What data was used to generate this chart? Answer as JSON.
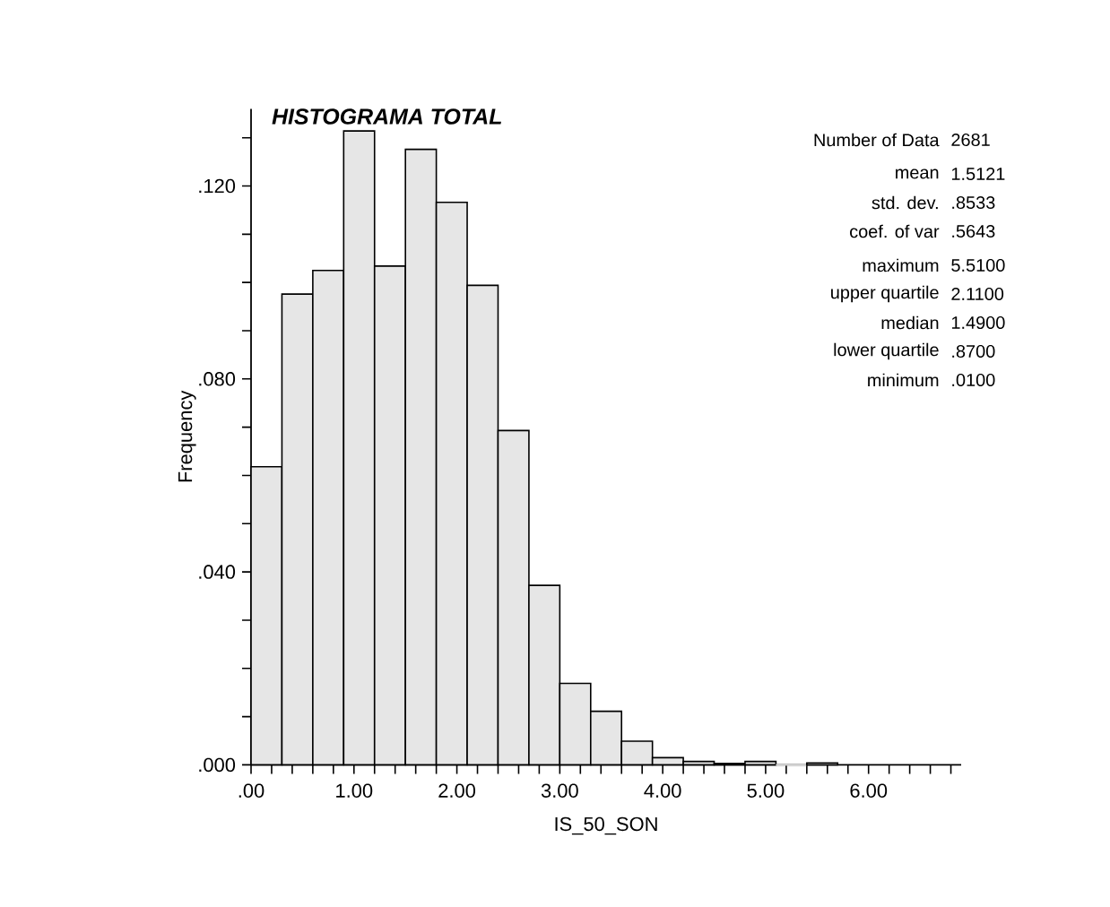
{
  "chart_data": {
    "type": "histogram",
    "title": "HISTOGRAMA TOTAL",
    "xlabel": "IS_50_SON",
    "ylabel": "Frequency",
    "bins": [
      0,
      0.3,
      0.6,
      0.9,
      1.2,
      1.5,
      1.8,
      2.1,
      2.4,
      2.7,
      3.0,
      3.3,
      3.6,
      3.9,
      4.2,
      4.5,
      4.8,
      5.1,
      5.4,
      5.7
    ],
    "values": [
      0.0618,
      0.0976,
      0.1025,
      0.1314,
      0.1034,
      0.1276,
      0.1166,
      0.0994,
      0.0693,
      0.0372,
      0.0169,
      0.0111,
      0.0049,
      0.0015,
      0.0007,
      0.0003,
      0.0007,
      0,
      0.0004
    ],
    "color": "#e6e6e6",
    "xlim": [
      0,
      6.9
    ],
    "ylim": [
      0,
      0.136
    ],
    "xticks": [
      {
        "value": 0,
        "label": ".00"
      },
      {
        "value": 0.2,
        "label": null
      },
      {
        "value": 0.4,
        "label": null
      },
      {
        "value": 0.6,
        "label": null
      },
      {
        "value": 0.8,
        "label": null
      },
      {
        "value": 1,
        "label": "1.00"
      },
      {
        "value": 1.2,
        "label": null
      },
      {
        "value": 1.4,
        "label": null
      },
      {
        "value": 1.6,
        "label": null
      },
      {
        "value": 1.8,
        "label": null
      },
      {
        "value": 2,
        "label": "2.00"
      },
      {
        "value": 2.2,
        "label": null
      },
      {
        "value": 2.4,
        "label": null
      },
      {
        "value": 2.6,
        "label": null
      },
      {
        "value": 2.8,
        "label": null
      },
      {
        "value": 3,
        "label": "3.00"
      },
      {
        "value": 3.2,
        "label": null
      },
      {
        "value": 3.4,
        "label": null
      },
      {
        "value": 3.6,
        "label": null
      },
      {
        "value": 3.8,
        "label": null
      },
      {
        "value": 4,
        "label": "4.00"
      },
      {
        "value": 4.2,
        "label": null
      },
      {
        "value": 4.4,
        "label": null
      },
      {
        "value": 4.6,
        "label": null
      },
      {
        "value": 4.8,
        "label": null
      },
      {
        "value": 5,
        "label": "5.00"
      },
      {
        "value": 5.2,
        "label": null
      },
      {
        "value": 5.4,
        "label": null
      },
      {
        "value": 5.6,
        "label": null
      },
      {
        "value": 5.8,
        "label": null
      },
      {
        "value": 6,
        "label": "6.00"
      },
      {
        "value": 6.2,
        "label": null
      },
      {
        "value": 6.4,
        "label": null
      },
      {
        "value": 6.6,
        "label": null
      },
      {
        "value": 6.8,
        "label": null
      }
    ],
    "yticks": [
      {
        "value": 0,
        "label": ".000"
      },
      {
        "value": 0.01,
        "label": null
      },
      {
        "value": 0.02,
        "label": null
      },
      {
        "value": 0.03,
        "label": null
      },
      {
        "value": 0.04,
        "label": ".040"
      },
      {
        "value": 0.05,
        "label": null
      },
      {
        "value": 0.06,
        "label": null
      },
      {
        "value": 0.07,
        "label": null
      },
      {
        "value": 0.08,
        "label": ".080"
      },
      {
        "value": 0.09,
        "label": null
      },
      {
        "value": 0.1,
        "label": null
      },
      {
        "value": 0.11,
        "label": null
      },
      {
        "value": 0.12,
        "label": ".120"
      },
      {
        "value": 0.13,
        "label": null
      }
    ],
    "annotations": [
      "Number of Data",
      "2681",
      "mean",
      "1.5121",
      "std. dev.",
      ".8533",
      "coef. of var",
      ".5643",
      "maximum",
      "5.5100",
      "upper quartile",
      "2.1100",
      "median",
      "1.4900",
      "lower quartile",
      ".8700",
      "minimum",
      ".0100"
    ]
  }
}
